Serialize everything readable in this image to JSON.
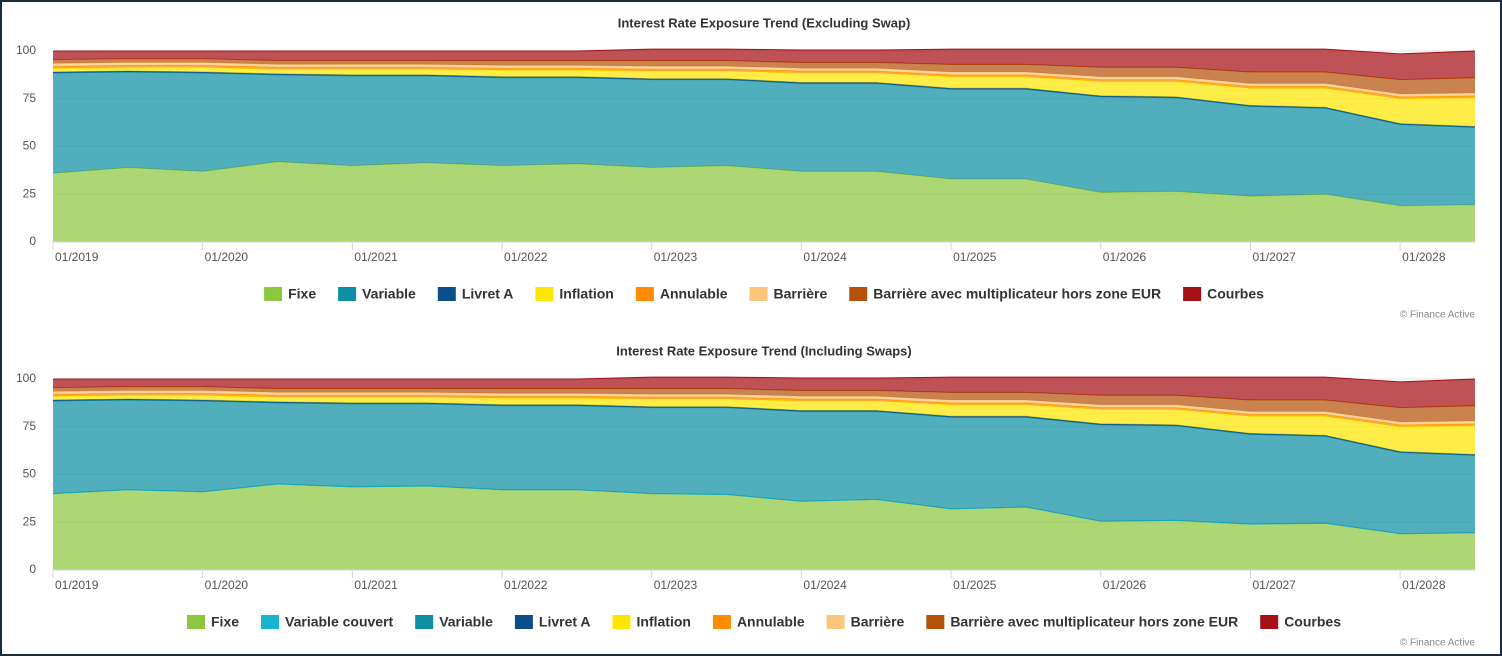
{
  "chart_data": [
    {
      "type": "area",
      "stacked": true,
      "title": "Interest Rate Exposure Trend (Excluding Swap)",
      "credit": "© Finance Active",
      "categories": [
        "01/2019",
        null,
        "01/2020",
        null,
        "01/2021",
        null,
        "01/2022",
        null,
        "01/2023",
        null,
        "01/2024",
        null,
        "01/2025",
        null,
        "01/2026",
        null,
        "01/2027",
        null,
        "01/2028",
        null
      ],
      "ylim": [
        0,
        100
      ],
      "yticks": [
        0,
        25,
        50,
        75,
        100
      ],
      "grid": true,
      "series": [
        {
          "name": "Fixe",
          "color": "#8dc63f",
          "values": [
            36,
            39,
            37,
            42,
            40,
            41.5,
            40,
            41,
            39,
            40,
            37,
            37,
            33,
            33,
            26,
            26.5,
            24,
            25,
            19,
            19.5
          ]
        },
        {
          "name": "Variable",
          "color": "#0e8fa3",
          "values": [
            52.5,
            50,
            51.5,
            45.5,
            47,
            45.5,
            46,
            45,
            46,
            45,
            46,
            46,
            47,
            47,
            50,
            49,
            47,
            45,
            42.5,
            40.5
          ]
        },
        {
          "name": "Livret A",
          "color": "#0b4f8a",
          "values": [
            0.5,
            0.5,
            0.5,
            0.5,
            0.5,
            0.5,
            0.5,
            0.5,
            0.5,
            0.5,
            0.5,
            0.5,
            0.5,
            0.5,
            0.5,
            0.5,
            0.5,
            0.5,
            0.5,
            0.5
          ]
        },
        {
          "name": "Inflation",
          "color": "#ffe600",
          "values": [
            2,
            2,
            2.5,
            2.5,
            3,
            3,
            3.5,
            3.5,
            4,
            4,
            5,
            5,
            6,
            6,
            7.5,
            8,
            9,
            10,
            13,
            15
          ]
        },
        {
          "name": "Annulable",
          "color": "#ff8c00",
          "values": [
            1,
            1,
            1,
            1,
            1,
            1,
            1,
            1,
            1,
            1,
            1,
            1,
            1,
            1,
            1,
            1,
            1,
            1,
            1,
            1
          ]
        },
        {
          "name": "Barrière",
          "color": "#fbc57a",
          "values": [
            1.5,
            1.5,
            1.5,
            1.5,
            1.5,
            1.5,
            1.5,
            1.5,
            1.5,
            1.5,
            1.5,
            1.5,
            1.5,
            1.5,
            1.5,
            1.5,
            1.5,
            1.5,
            1.5,
            1.5
          ]
        },
        {
          "name": "Barrière avec multiplicateur hors zone EUR",
          "color": "#b5520a",
          "values": [
            2,
            2,
            2,
            2,
            2,
            2,
            2.5,
            2.5,
            3,
            3,
            3,
            3,
            4,
            4,
            5,
            5,
            6,
            6,
            7.5,
            8
          ]
        },
        {
          "name": "Courbes",
          "color": "#a50f15",
          "values": [
            4.5,
            4,
            4,
            5,
            5,
            5,
            5,
            5,
            6,
            6,
            6.5,
            6.5,
            8,
            8,
            9.5,
            9.5,
            12,
            12,
            13.5,
            14
          ]
        }
      ]
    },
    {
      "type": "area",
      "stacked": true,
      "title": "Interest Rate Exposure Trend (Including Swaps)",
      "credit": "© Finance Active",
      "categories": [
        "01/2019",
        null,
        "01/2020",
        null,
        "01/2021",
        null,
        "01/2022",
        null,
        "01/2023",
        null,
        "01/2024",
        null,
        "01/2025",
        null,
        "01/2026",
        null,
        "01/2027",
        null,
        "01/2028",
        null
      ],
      "ylim": [
        0,
        100
      ],
      "yticks": [
        0,
        25,
        50,
        75,
        100
      ],
      "grid": true,
      "series": [
        {
          "name": "Fixe",
          "color": "#8dc63f",
          "values": [
            40,
            42,
            41,
            45,
            43.5,
            44,
            42,
            42,
            40,
            39.5,
            36,
            37,
            32,
            33,
            25.5,
            26,
            24,
            24.5,
            19,
            19.5
          ]
        },
        {
          "name": "Variable couvert",
          "color": "#17b5d0",
          "values": [
            0,
            0,
            0,
            0,
            0,
            0,
            0,
            0,
            0,
            0,
            0,
            0,
            0,
            0,
            0,
            0,
            0,
            0,
            0,
            0
          ]
        },
        {
          "name": "Variable",
          "color": "#0e8fa3",
          "values": [
            48.5,
            47,
            47.5,
            42.5,
            43.5,
            43,
            44,
            44,
            45,
            45.5,
            47,
            46,
            48,
            47,
            50.5,
            49.5,
            47,
            45.5,
            42.5,
            40.5
          ]
        },
        {
          "name": "Livret A",
          "color": "#0b4f8a",
          "values": [
            0.5,
            0.5,
            0.5,
            0.5,
            0.5,
            0.5,
            0.5,
            0.5,
            0.5,
            0.5,
            0.5,
            0.5,
            0.5,
            0.5,
            0.5,
            0.5,
            0.5,
            0.5,
            0.5,
            0.5
          ]
        },
        {
          "name": "Inflation",
          "color": "#ffe600",
          "values": [
            2,
            2,
            2.5,
            2.5,
            3,
            3,
            3.5,
            3.5,
            4,
            4,
            5,
            5,
            6,
            6,
            7.5,
            8,
            9,
            10,
            13,
            15
          ]
        },
        {
          "name": "Annulable",
          "color": "#ff8c00",
          "values": [
            1,
            1,
            1,
            1,
            1,
            1,
            1,
            1,
            1,
            1,
            1,
            1,
            1,
            1,
            1,
            1,
            1,
            1,
            1,
            1
          ]
        },
        {
          "name": "Barrière",
          "color": "#fbc57a",
          "values": [
            1.5,
            1.5,
            1.5,
            1.5,
            1.5,
            1.5,
            1.5,
            1.5,
            1.5,
            1.5,
            1.5,
            1.5,
            1.5,
            1.5,
            1.5,
            1.5,
            1.5,
            1.5,
            1.5,
            1.5
          ]
        },
        {
          "name": "Barrière avec multiplicateur hors zone EUR",
          "color": "#b5520a",
          "values": [
            2,
            2,
            2,
            2,
            2,
            2,
            2.5,
            2.5,
            3,
            3,
            3,
            3,
            4,
            4,
            5,
            5,
            6,
            6,
            7.5,
            8
          ]
        },
        {
          "name": "Courbes",
          "color": "#a50f15",
          "values": [
            4.5,
            4,
            4,
            5,
            5,
            5,
            5,
            5,
            6,
            6,
            6.5,
            6.5,
            8,
            8,
            9.5,
            9.5,
            12,
            12,
            13.5,
            14
          ]
        }
      ]
    }
  ]
}
